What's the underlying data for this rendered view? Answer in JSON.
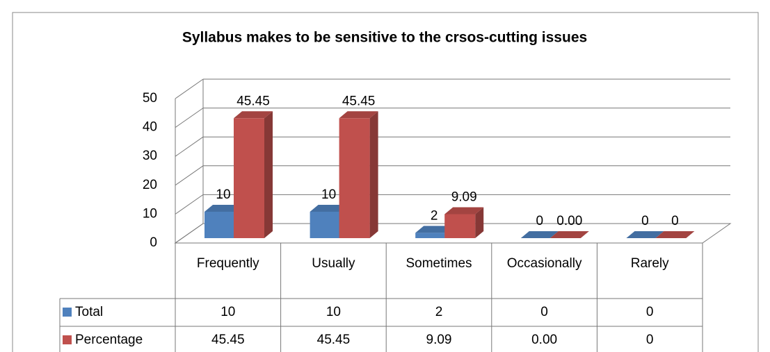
{
  "chart_data": {
    "type": "bar3d",
    "title": "Syllabus  makes to be sensitive to the crsos-cutting issues",
    "categories": [
      "Frequently",
      "Usually",
      "Sometimes",
      "Occasionally",
      "Rarely"
    ],
    "series": [
      {
        "name": "Total",
        "color": "#4f81bd",
        "values": [
          10,
          10,
          2,
          0,
          0
        ]
      },
      {
        "name": "Percentage",
        "color": "#c0504d",
        "values": [
          45.45,
          45.45,
          9.09,
          0,
          0
        ],
        "value_labels": [
          "45.45",
          "45.45",
          "9.09",
          "0.00",
          "0"
        ]
      }
    ],
    "ylim": [
      0,
      50
    ],
    "yticks": [
      0,
      10,
      20,
      30,
      40,
      50
    ],
    "grid": true
  }
}
